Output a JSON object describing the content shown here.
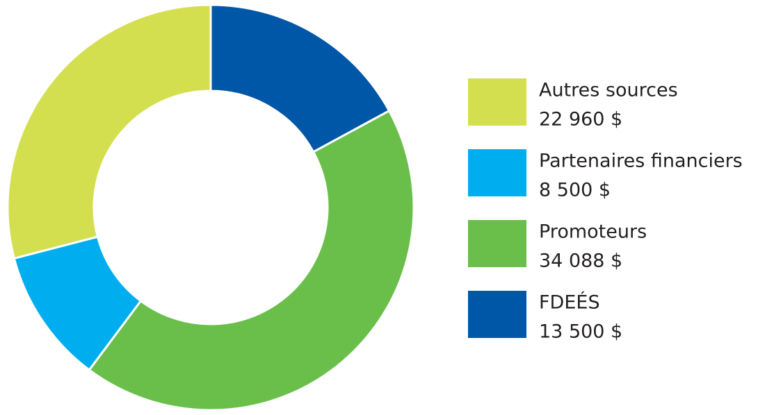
{
  "chart_data": {
    "type": "donut",
    "categories": [
      "Autres sources",
      "Partenaires financiers",
      "Promoteurs",
      "FDEÉS"
    ],
    "values": [
      22960,
      8500,
      34088,
      13500
    ],
    "value_labels": [
      "22 960 $",
      "8 500 $",
      "34 088 $",
      "13 500 $"
    ],
    "colors": [
      "#d4df50",
      "#00aeef",
      "#6abf4b",
      "#0057a8"
    ],
    "legend": "right"
  }
}
